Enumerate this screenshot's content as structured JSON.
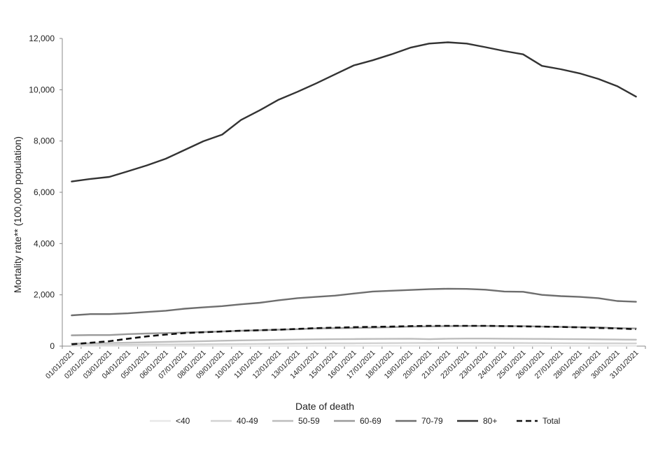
{
  "chart_data": {
    "type": "line",
    "xlabel": "Date of death",
    "ylabel": "Mortality rate** (100,000 population)",
    "ylim": [
      0,
      12000
    ],
    "yticks": [
      0,
      2000,
      4000,
      6000,
      8000,
      10000,
      12000
    ],
    "ytick_labels": [
      "0",
      "2,000",
      "4,000",
      "6,000",
      "8,000",
      "10,000",
      "12,000"
    ],
    "grid": false,
    "legend_position": "bottom",
    "categories": [
      "01/01/2021",
      "02/01/2021",
      "03/01/2021",
      "04/01/2021",
      "05/01/2021",
      "06/01/2021",
      "07/01/2021",
      "08/01/2021",
      "09/01/2021",
      "10/01/2021",
      "11/01/2021",
      "12/01/2021",
      "13/01/2021",
      "14/01/2021",
      "15/01/2021",
      "16/01/2021",
      "17/01/2021",
      "18/01/2021",
      "19/01/2021",
      "20/01/2021",
      "21/01/2021",
      "22/01/2021",
      "23/01/2021",
      "24/01/2021",
      "25/01/2021",
      "26/01/2021",
      "27/01/2021",
      "28/01/2021",
      "29/01/2021",
      "30/01/2021",
      "31/01/2021"
    ],
    "series": [
      {
        "name": "<40",
        "color": "#e8e8e8",
        "dashed": false,
        "values": [
          5,
          6,
          6,
          6,
          7,
          7,
          7,
          8,
          8,
          8,
          9,
          9,
          9,
          10,
          10,
          10,
          10,
          11,
          11,
          11,
          11,
          11,
          11,
          11,
          11,
          10,
          10,
          10,
          10,
          10,
          10
        ]
      },
      {
        "name": "40-49",
        "color": "#d2d2d2",
        "dashed": false,
        "values": [
          40,
          45,
          50,
          55,
          60,
          65,
          70,
          75,
          80,
          85,
          90,
          95,
          100,
          105,
          110,
          110,
          115,
          118,
          120,
          122,
          125,
          125,
          125,
          122,
          120,
          118,
          115,
          112,
          110,
          108,
          105
        ]
      },
      {
        "name": "50-59",
        "color": "#bdbdbd",
        "dashed": false,
        "values": [
          100,
          110,
          120,
          135,
          150,
          165,
          180,
          195,
          210,
          225,
          235,
          245,
          255,
          265,
          270,
          275,
          280,
          285,
          290,
          270,
          290,
          295,
          295,
          290,
          285,
          280,
          275,
          270,
          265,
          255,
          250
        ]
      },
      {
        "name": "60-69",
        "color": "#9a9a9a",
        "dashed": false,
        "values": [
          420,
          430,
          430,
          470,
          490,
          510,
          530,
          550,
          570,
          600,
          620,
          640,
          660,
          690,
          700,
          710,
          720,
          740,
          760,
          770,
          780,
          785,
          785,
          780,
          780,
          760,
          750,
          740,
          730,
          700,
          690
        ]
      },
      {
        "name": "70-79",
        "color": "#6e6e6e",
        "dashed": false,
        "values": [
          1200,
          1250,
          1250,
          1280,
          1330,
          1380,
          1460,
          1510,
          1560,
          1630,
          1690,
          1790,
          1870,
          1920,
          1970,
          2050,
          2130,
          2160,
          2190,
          2220,
          2240,
          2230,
          2200,
          2130,
          2120,
          2000,
          1950,
          1920,
          1870,
          1760,
          1730
        ]
      },
      {
        "name": "80+",
        "color": "#333333",
        "dashed": false,
        "values": [
          6420,
          6520,
          6600,
          6820,
          7050,
          7310,
          7650,
          7990,
          8250,
          8820,
          9200,
          9610,
          9920,
          10250,
          10600,
          10950,
          11150,
          11380,
          11640,
          11800,
          11850,
          11800,
          11660,
          11510,
          11380,
          10930,
          10800,
          10640,
          10420,
          10140,
          9730
        ]
      },
      {
        "name": "Total",
        "color": "#111111",
        "dashed": true,
        "values": [
          70,
          130,
          190,
          290,
          380,
          450,
          510,
          540,
          570,
          600,
          620,
          640,
          670,
          700,
          720,
          740,
          750,
          760,
          780,
          790,
          790,
          790,
          790,
          780,
          770,
          760,
          750,
          730,
          710,
          690,
          660
        ]
      }
    ]
  }
}
